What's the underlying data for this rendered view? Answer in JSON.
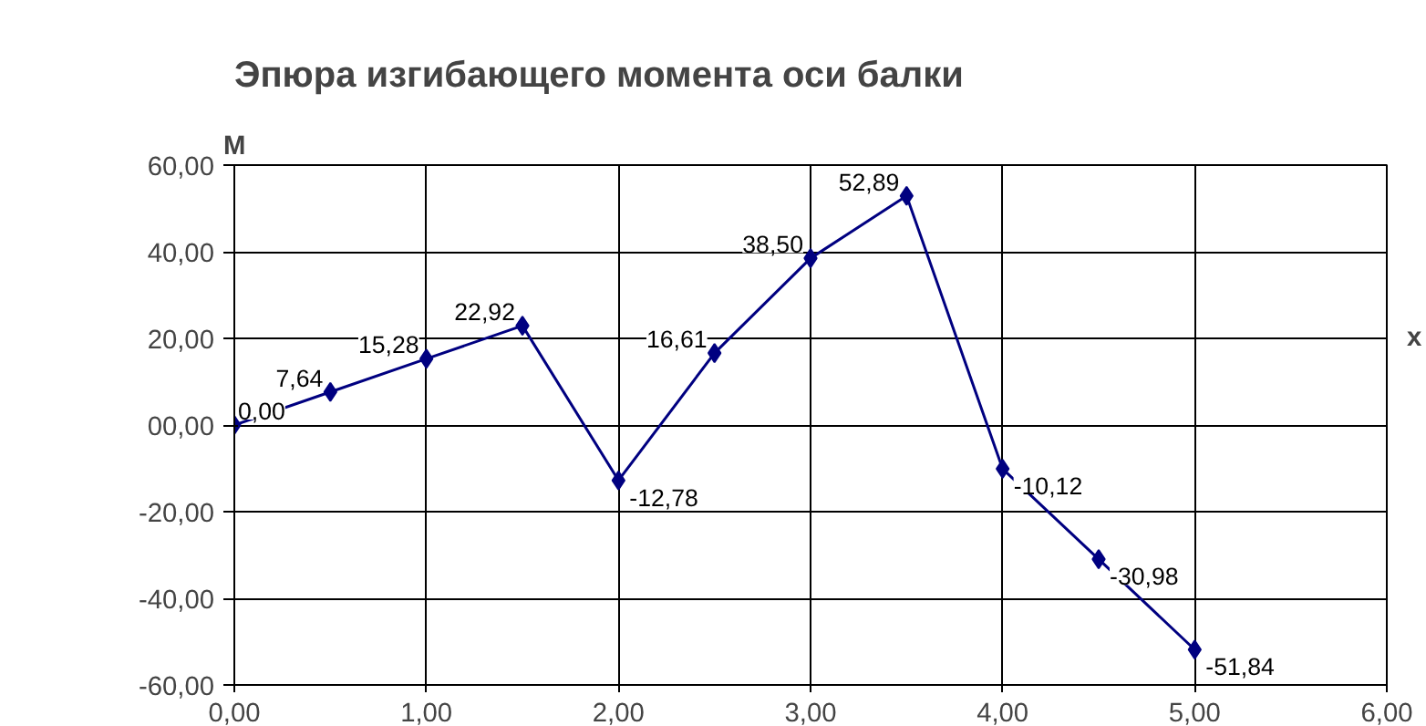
{
  "chart_data": {
    "type": "line",
    "title": "Эпюра изгибающего момента оси балки",
    "xlabel": "x",
    "ylabel": "M",
    "x": [
      0,
      0.5,
      1,
      1.5,
      2,
      2.5,
      3,
      3.5,
      4,
      4.5,
      5
    ],
    "series": [
      {
        "color": "#000080",
        "values": [
          0,
          7.64,
          15.28,
          22.92,
          -12.78,
          16.61,
          38.5,
          52.89,
          -10.12,
          -30.98,
          -51.84
        ],
        "value_labels": [
          "0,00",
          "7,64",
          "15,28",
          "22,92",
          "-12,78",
          "16,61",
          "38,50",
          "52,89",
          "-10,12",
          "-30,98",
          "-51,84"
        ]
      }
    ],
    "xlim": [
      0,
      6
    ],
    "ylim": [
      -60,
      60
    ],
    "xticks": [
      {
        "value": 0,
        "label": "0,00"
      },
      {
        "value": 1,
        "label": "1,00"
      },
      {
        "value": 2,
        "label": "2,00"
      },
      {
        "value": 3,
        "label": "3,00"
      },
      {
        "value": 4,
        "label": "4,00"
      },
      {
        "value": 5,
        "label": "5,00"
      },
      {
        "value": 6,
        "label": "6,00"
      }
    ],
    "yticks": [
      {
        "value": -60,
        "label": "-60,00"
      },
      {
        "value": -40,
        "label": "-40,00"
      },
      {
        "value": -20,
        "label": "-20,00"
      },
      {
        "value": 0,
        "label": "00,00"
      },
      {
        "value": 20,
        "label": "20,00"
      },
      {
        "value": 40,
        "label": "40,00"
      },
      {
        "value": 60,
        "label": "60,00"
      }
    ],
    "grid": true,
    "marker": "diamond",
    "line_style": "solid"
  }
}
